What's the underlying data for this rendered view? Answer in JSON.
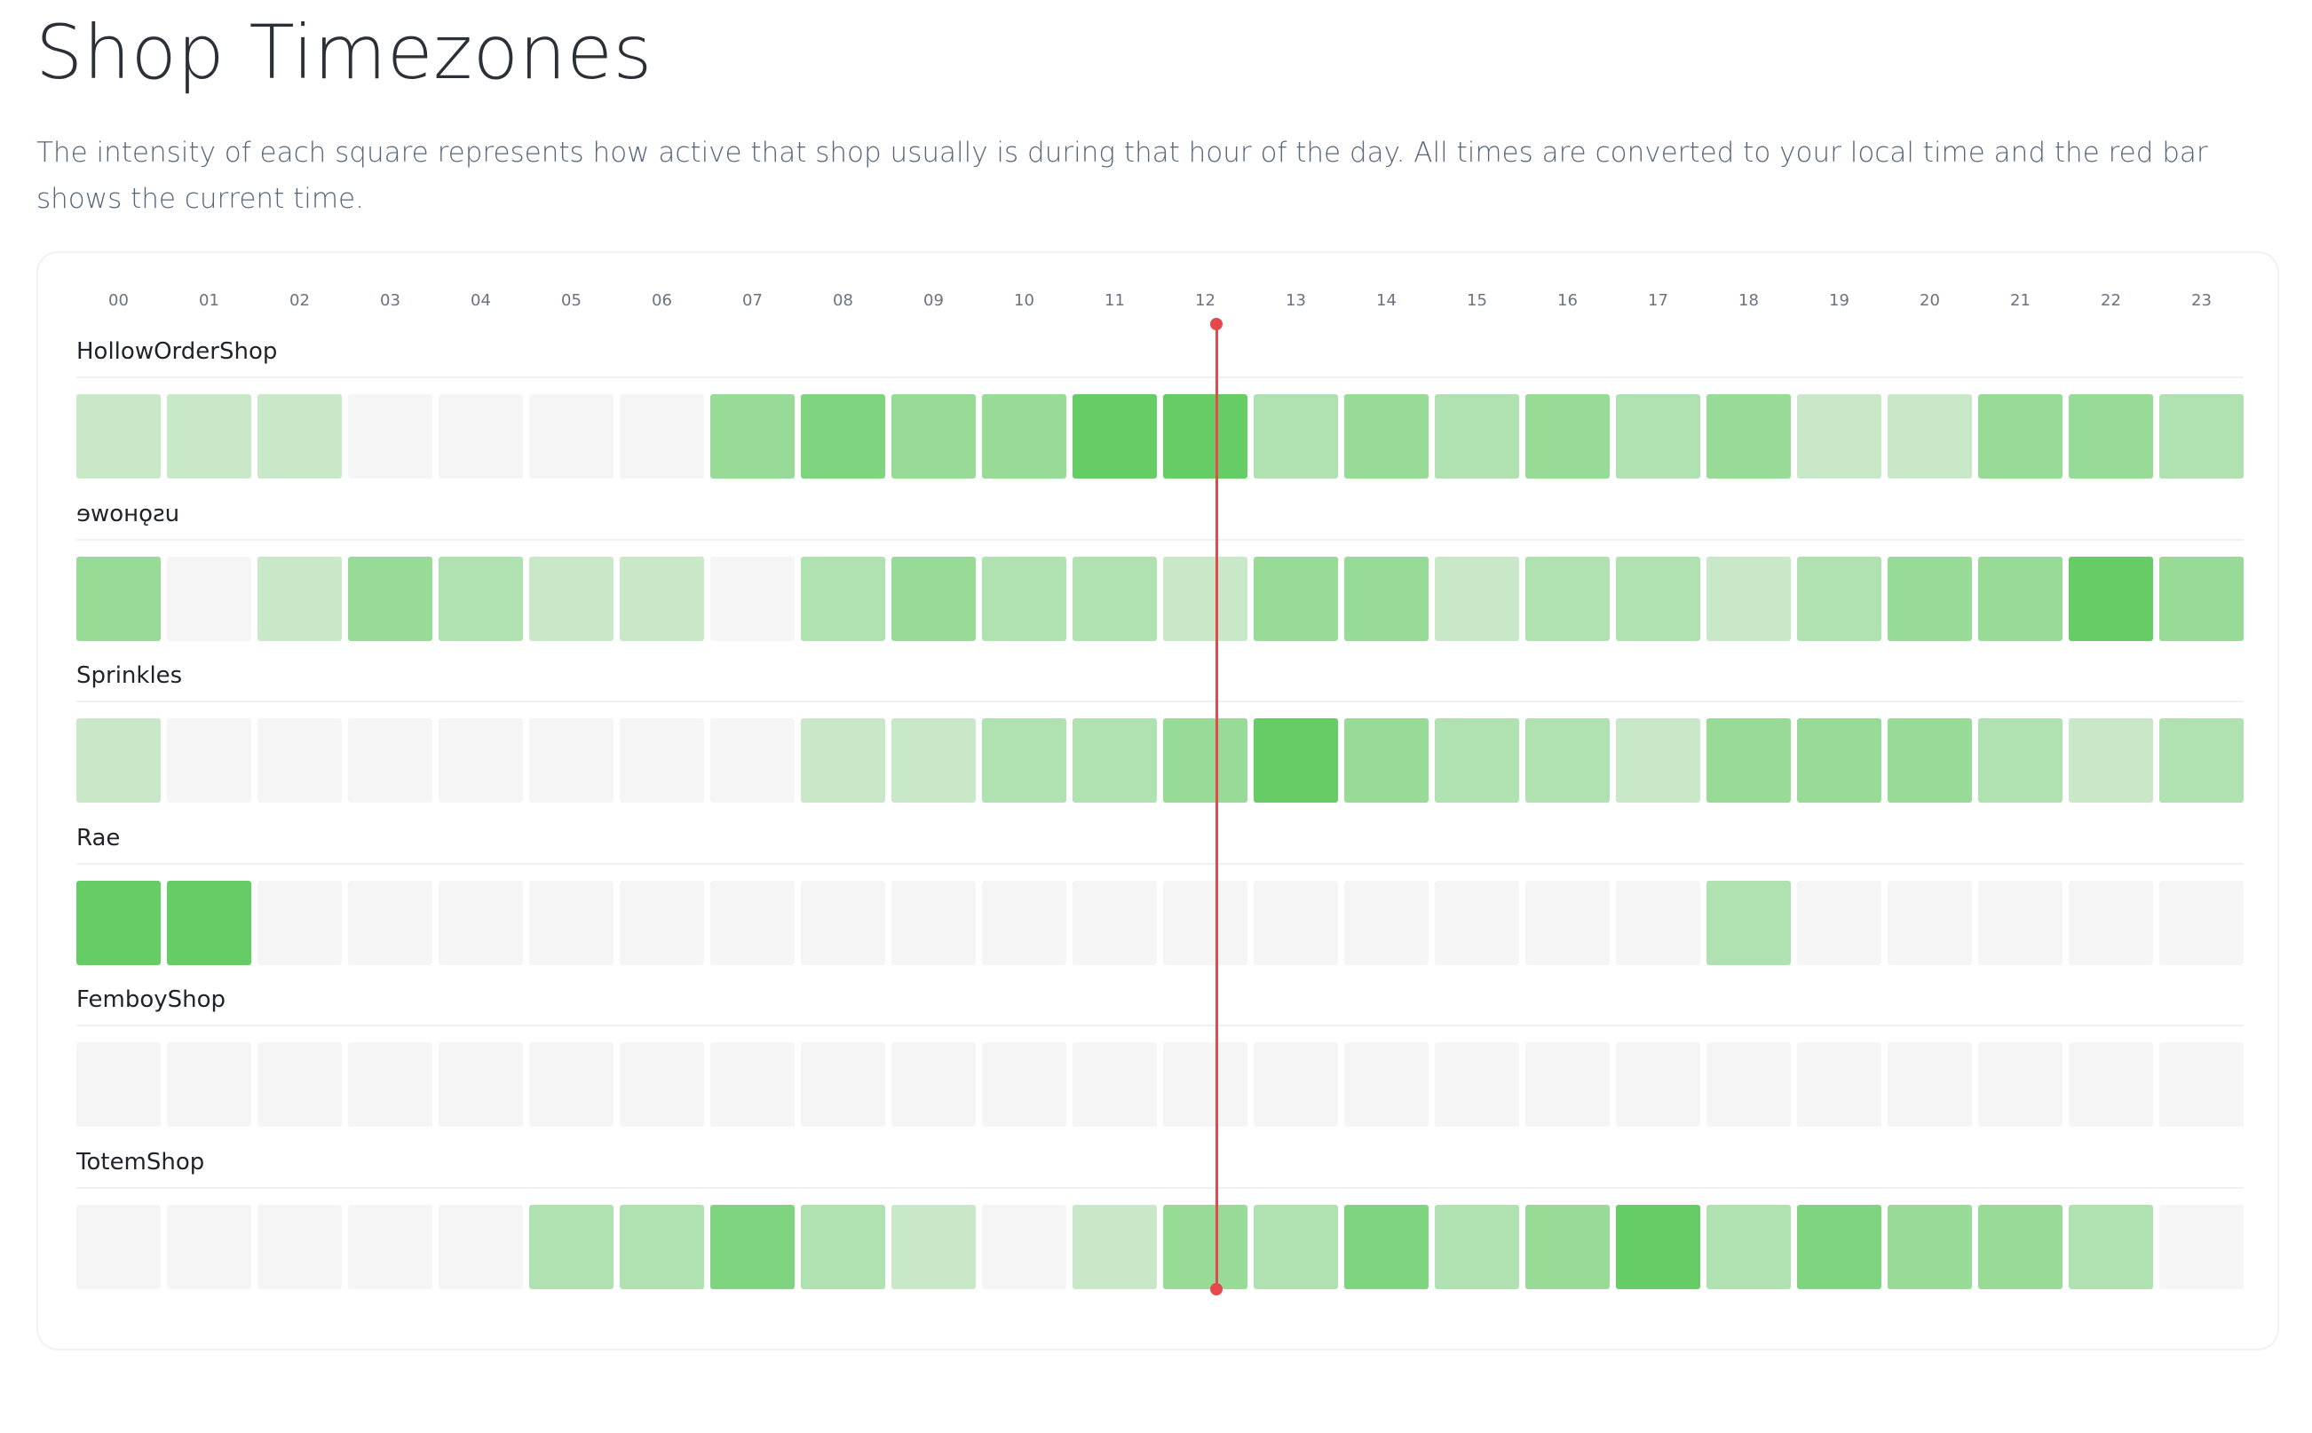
{
  "page": {
    "title": "Shop Timezones",
    "description": "The intensity of each square represents how active that shop usually is during that hour of the day. All times are converted to your local time and the red bar shows the current time."
  },
  "colors": {
    "empty": "#f5f5f5",
    "green_max": "#66cd66",
    "green_min": "#c8e8c8",
    "current_time_bar": "#e5484d"
  },
  "chart_data": {
    "type": "heatmap",
    "title": "",
    "xlabel": "",
    "ylabel": "",
    "hours": [
      "00",
      "01",
      "02",
      "03",
      "04",
      "05",
      "06",
      "07",
      "08",
      "09",
      "10",
      "11",
      "12",
      "13",
      "14",
      "15",
      "16",
      "17",
      "18",
      "19",
      "20",
      "21",
      "22",
      "23"
    ],
    "current_hour": "12",
    "intensity_scale": [
      0,
      5
    ],
    "shops": [
      {
        "name": "HollowOrderShop",
        "flipped": false,
        "activity": [
          1,
          1,
          1,
          0,
          0,
          0,
          0,
          3,
          4,
          3,
          3,
          5,
          5,
          2,
          3,
          2,
          3,
          2,
          3,
          1,
          1,
          3,
          3,
          2
        ]
      },
      {
        "name": "ɘwoʜǫƨu",
        "flipped": false,
        "activity": [
          3,
          0,
          1,
          3,
          2,
          1,
          1,
          0,
          2,
          3,
          2,
          2,
          1,
          3,
          3,
          1,
          2,
          2,
          1,
          2,
          3,
          3,
          5,
          3
        ]
      },
      {
        "name": "Sprinkles",
        "flipped": false,
        "activity": [
          1,
          0,
          0,
          0,
          0,
          0,
          0,
          0,
          1,
          1,
          2,
          2,
          3,
          5,
          3,
          2,
          2,
          1,
          3,
          3,
          3,
          2,
          1,
          2
        ]
      },
      {
        "name": "Rae",
        "flipped": false,
        "activity": [
          5,
          5,
          0,
          0,
          0,
          0,
          0,
          0,
          0,
          0,
          0,
          0,
          0,
          0,
          0,
          0,
          0,
          0,
          2,
          0,
          0,
          0,
          0,
          0
        ]
      },
      {
        "name": "FemboyShop",
        "flipped": false,
        "activity": [
          0,
          0,
          0,
          0,
          0,
          0,
          0,
          0,
          0,
          0,
          0,
          0,
          0,
          0,
          0,
          0,
          0,
          0,
          0,
          0,
          0,
          0,
          0,
          0
        ]
      },
      {
        "name": "TotemShop",
        "flipped": false,
        "activity": [
          0,
          0,
          0,
          0,
          0,
          2,
          2,
          4,
          2,
          1,
          0,
          1,
          3,
          2,
          4,
          2,
          3,
          5,
          2,
          4,
          3,
          3,
          2,
          0
        ]
      }
    ]
  }
}
